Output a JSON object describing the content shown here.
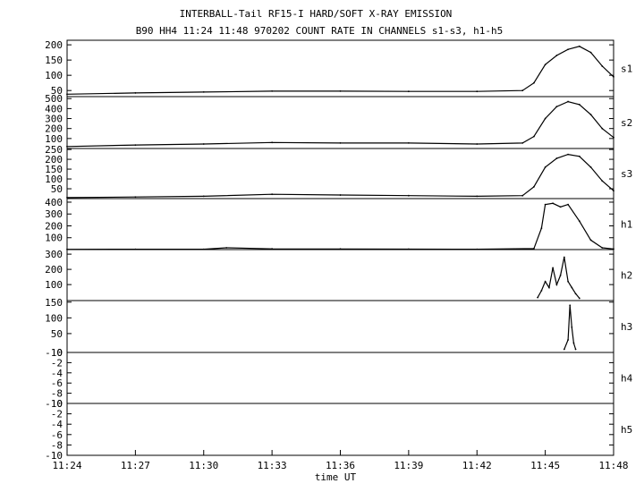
{
  "chart_data": {
    "type": "line",
    "title": "INTERBALL-Tail RF15-I HARD/SOFT X-RAY EMISSION",
    "subtitle": "B90 HH4 11:24 11:48 970202  COUNT RATE IN CHANNELS s1-s3, h1-h5",
    "xlabel": "time UT",
    "x_ticks": [
      "11:24",
      "11:27",
      "11:30",
      "11:33",
      "11:36",
      "11:39",
      "11:42",
      "11:45",
      "11:48"
    ],
    "xlim": [
      "11:24",
      "11:48"
    ],
    "grid": false,
    "panels": [
      {
        "name": "s1",
        "ylim": [
          30,
          215
        ],
        "yticks": [
          50,
          100,
          150,
          200
        ],
        "x": [
          "11:24",
          "11:27",
          "11:30",
          "11:33",
          "11:36",
          "11:39",
          "11:42",
          "11:44",
          "11:44:30",
          "11:45",
          "11:45:30",
          "11:46",
          "11:46:30",
          "11:47",
          "11:47:30",
          "11:48"
        ],
        "y": [
          38,
          42,
          45,
          48,
          48,
          47,
          47,
          50,
          75,
          135,
          165,
          185,
          195,
          175,
          130,
          95
        ]
      },
      {
        "name": "s2",
        "ylim": [
          0,
          520
        ],
        "yticks": [
          100,
          200,
          300,
          400,
          500
        ],
        "x": [
          "11:24",
          "11:27",
          "11:30",
          "11:33",
          "11:36",
          "11:39",
          "11:42",
          "11:44",
          "11:44:30",
          "11:45",
          "11:45:30",
          "11:46",
          "11:46:30",
          "11:47",
          "11:47:30",
          "11:48"
        ],
        "y": [
          20,
          35,
          45,
          60,
          55,
          55,
          45,
          55,
          120,
          300,
          420,
          470,
          440,
          340,
          200,
          110
        ]
      },
      {
        "name": "s3",
        "ylim": [
          0,
          255
        ],
        "yticks": [
          50,
          100,
          150,
          200,
          250
        ],
        "x": [
          "11:24",
          "11:27",
          "11:30",
          "11:33",
          "11:36",
          "11:39",
          "11:42",
          "11:44",
          "11:44:30",
          "11:45",
          "11:45:30",
          "11:46",
          "11:46:30",
          "11:47",
          "11:47:30",
          "11:48"
        ],
        "y": [
          5,
          8,
          12,
          22,
          18,
          15,
          12,
          15,
          60,
          160,
          205,
          225,
          215,
          160,
          90,
          40
        ]
      },
      {
        "name": "h1",
        "ylim": [
          0,
          430
        ],
        "yticks": [
          100,
          200,
          300,
          400
        ],
        "x": [
          "11:24",
          "11:27",
          "11:30",
          "11:31",
          "11:33",
          "11:36",
          "11:39",
          "11:42",
          "11:44:30",
          "11:44:50",
          "11:45",
          "11:45:20",
          "11:45:40",
          "11:46",
          "11:46:30",
          "11:47",
          "11:47:30",
          "11:48"
        ],
        "y": [
          2,
          3,
          3,
          15,
          6,
          5,
          4,
          3,
          8,
          180,
          380,
          390,
          360,
          380,
          240,
          80,
          15,
          5
        ]
      },
      {
        "name": "h2",
        "ylim": [
          -5,
          330
        ],
        "yticks": [
          100,
          200,
          300
        ],
        "x": [
          "11:44:40",
          "11:44:50",
          "11:45",
          "11:45:10",
          "11:45:20",
          "11:45:30",
          "11:45:40",
          "11:45:50",
          "11:46",
          "11:46:10",
          "11:46:20",
          "11:46:30"
        ],
        "y": [
          15,
          60,
          120,
          80,
          210,
          100,
          160,
          280,
          120,
          80,
          40,
          10
        ]
      },
      {
        "name": "h3",
        "ylim": [
          -10,
          155
        ],
        "yticks": [
          -10,
          50,
          100,
          150
        ],
        "x": [
          "11:45:50",
          "11:46",
          "11:46:05",
          "11:46:10",
          "11:46:15",
          "11:46:20"
        ],
        "y": [
          0,
          30,
          140,
          70,
          20,
          0
        ]
      },
      {
        "name": "h4",
        "ylim": [
          -10,
          0
        ],
        "yticks": [
          -10,
          -8,
          -6,
          -4,
          -2,
          0
        ],
        "x": [],
        "y": []
      },
      {
        "name": "h5",
        "ylim": [
          -10,
          0
        ],
        "yticks": [
          -10,
          -8,
          -6,
          -4,
          -2,
          0
        ],
        "x": [],
        "y": []
      }
    ]
  }
}
